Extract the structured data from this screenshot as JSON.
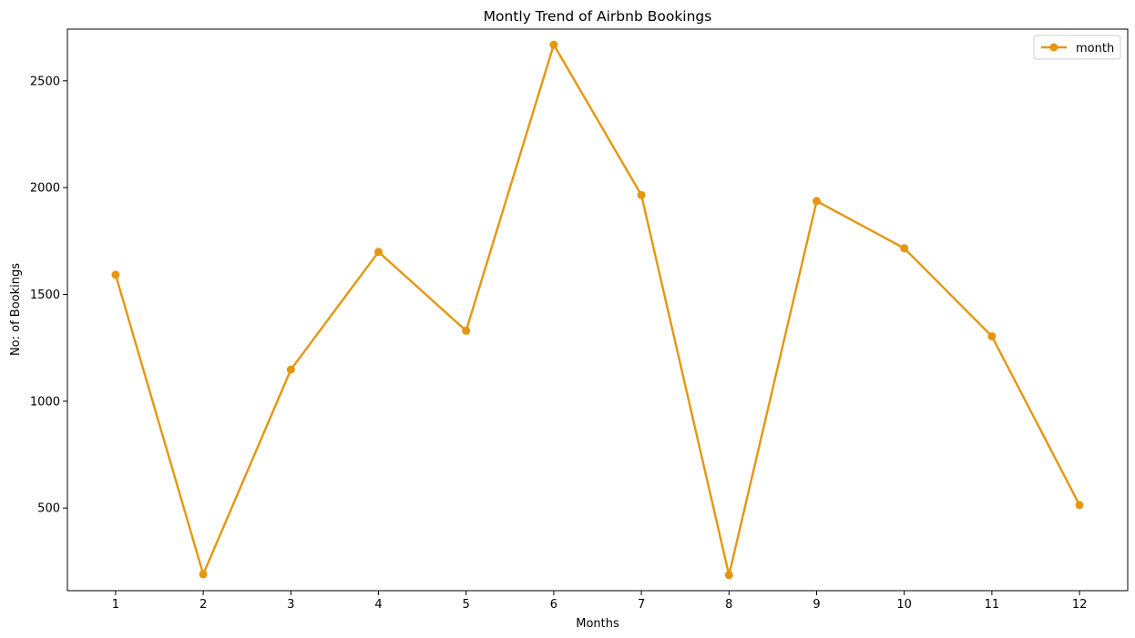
{
  "chart_data": {
    "type": "line",
    "title": "Montly Trend of Airbnb Bookings",
    "xlabel": "Months",
    "ylabel": "No: of Bookings",
    "x": [
      1,
      2,
      3,
      4,
      5,
      6,
      7,
      8,
      9,
      10,
      11,
      12
    ],
    "series": [
      {
        "name": "month",
        "values": [
          1592,
          190,
          1148,
          1699,
          1330,
          2669,
          1965,
          186,
          1937,
          1716,
          1304,
          514
        ],
        "color": "#e6960e",
        "marker": "circle"
      }
    ],
    "xlim": [
      0.45,
      12.55
    ],
    "ylim": [
      113,
      2742
    ],
    "xticks": [
      "1",
      "2",
      "3",
      "4",
      "5",
      "6",
      "7",
      "8",
      "9",
      "10",
      "11",
      "12"
    ],
    "yticks": [
      500,
      1000,
      1500,
      2000,
      2500
    ],
    "grid": false,
    "legend_position": "top-right"
  }
}
